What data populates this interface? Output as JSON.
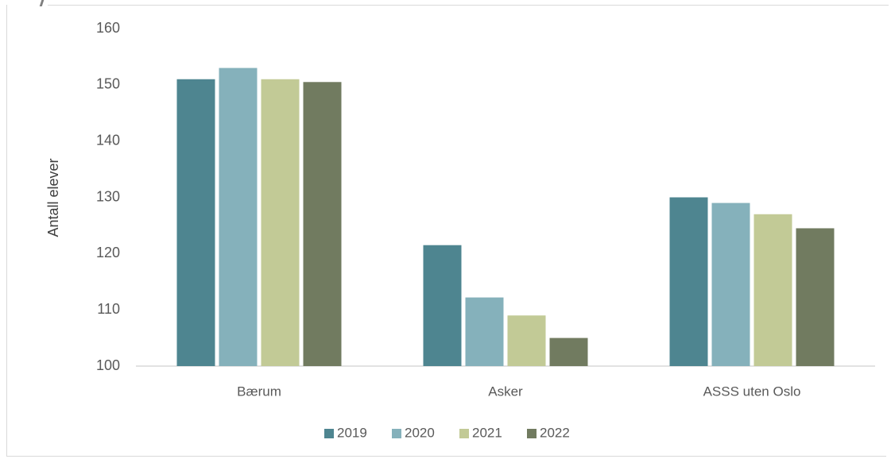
{
  "chart_data": {
    "type": "bar",
    "title": "",
    "ylabel": "Antall elever",
    "xlabel": "",
    "ylim": [
      100,
      160
    ],
    "yticks": [
      100,
      110,
      120,
      130,
      140,
      150,
      160
    ],
    "grid": false,
    "legend_position": "bottom",
    "categories": [
      "Bærum",
      "Asker",
      "ASSS uten Oslo"
    ],
    "series": [
      {
        "name": "2019",
        "color": "#4e8590",
        "values": [
          151,
          121.5,
          130
        ]
      },
      {
        "name": "2020",
        "color": "#85b1bb",
        "values": [
          153,
          112.2,
          129
        ]
      },
      {
        "name": "2021",
        "color": "#c2ca96",
        "values": [
          151,
          109,
          127
        ]
      },
      {
        "name": "2022",
        "color": "#717b60",
        "values": [
          150.5,
          105,
          124.5
        ]
      }
    ]
  }
}
